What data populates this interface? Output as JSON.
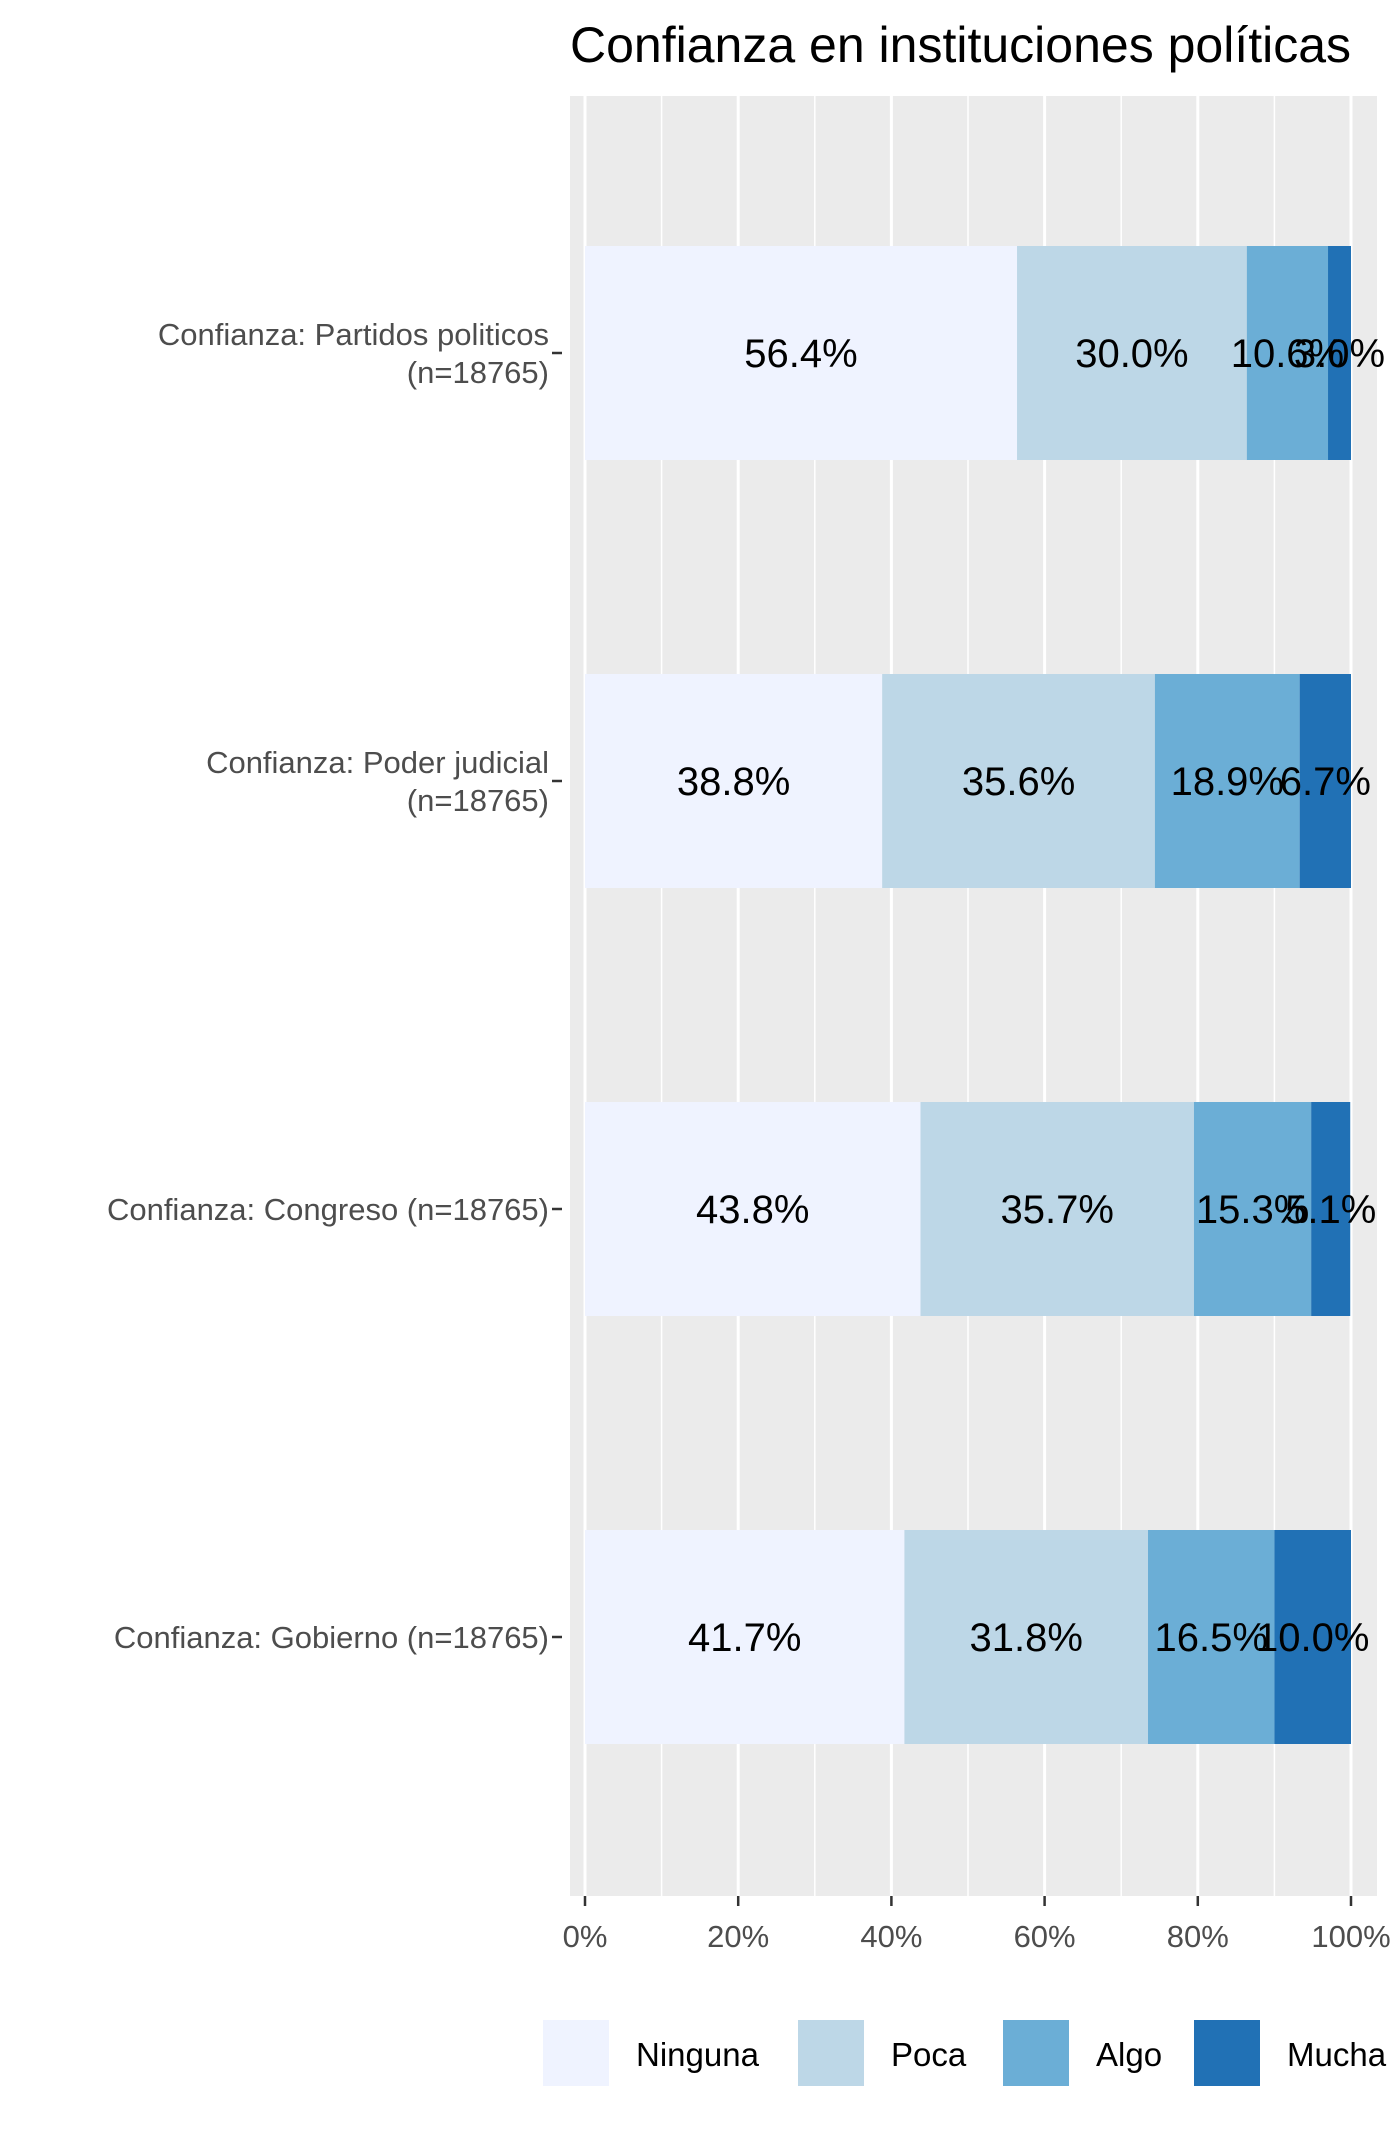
{
  "chart_data": {
    "type": "bar",
    "orientation": "horizontal",
    "stacked": true,
    "title": "Confianza en instituciones políticas",
    "categories": [
      [
        "Confianza: Partidos politicos",
        "(n=18765)"
      ],
      [
        "Confianza: Poder judicial",
        "(n=18765)"
      ],
      [
        "Confianza: Congreso (n=18765)"
      ],
      [
        "Confianza: Gobierno (n=18765)"
      ]
    ],
    "series": [
      {
        "name": "Ninguna",
        "color": "#eff3ff",
        "values": [
          56.4,
          38.8,
          43.8,
          41.7
        ],
        "labels": [
          "56.4%",
          "38.8%",
          "43.8%",
          "41.7%"
        ]
      },
      {
        "name": "Poca",
        "color": "#bdd7e7",
        "values": [
          30.0,
          35.6,
          35.7,
          31.8
        ],
        "labels": [
          "30.0%",
          "35.6%",
          "35.7%",
          "31.8%"
        ]
      },
      {
        "name": "Algo",
        "color": "#6baed6",
        "values": [
          10.6,
          18.9,
          15.3,
          16.5
        ],
        "labels": [
          "10.6%",
          "18.9%",
          "15.3%",
          "16.5%"
        ]
      },
      {
        "name": "Mucha",
        "color": "#2171b5",
        "values": [
          3.0,
          6.7,
          5.1,
          10.0
        ],
        "labels": [
          "3.0%",
          "6.7%",
          "5.1%",
          "10.0%"
        ]
      }
    ],
    "x_ticks": [
      "0%",
      "20%",
      "40%",
      "60%",
      "80%",
      "100%"
    ],
    "xlim": [
      0,
      100
    ],
    "grid": true,
    "panel_background": "#ebebeb",
    "legend_position": "bottom"
  }
}
